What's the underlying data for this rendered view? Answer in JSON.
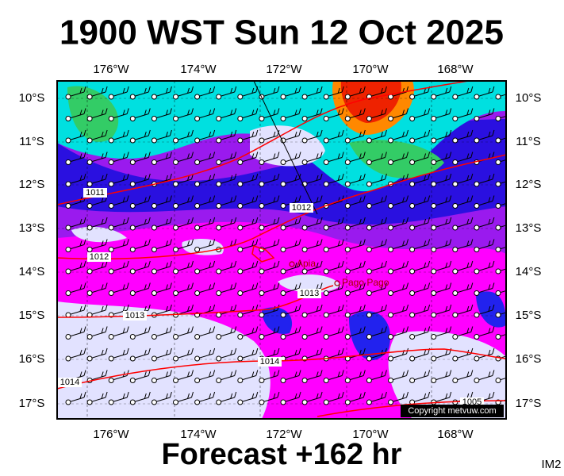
{
  "header": {
    "title": "1900 WST Sun 12 Oct 2025"
  },
  "map": {
    "lon_labels": [
      "176°W",
      "174°W",
      "172°W",
      "170°W",
      "168°W"
    ],
    "lat_labels": [
      "10°S",
      "11°S",
      "12°S",
      "13°S",
      "14°S",
      "15°S",
      "16°S",
      "17°S"
    ],
    "isobar_labels": [
      "1011",
      "1012",
      "1012",
      "1013",
      "1013",
      "1014",
      "1014",
      "1005"
    ],
    "places": [
      "Apia",
      "Pago Pago"
    ],
    "copyright": "Copyright metvuw.com"
  },
  "footer": {
    "forecast": "Forecast +162 hr",
    "image_id": "IM2"
  }
}
